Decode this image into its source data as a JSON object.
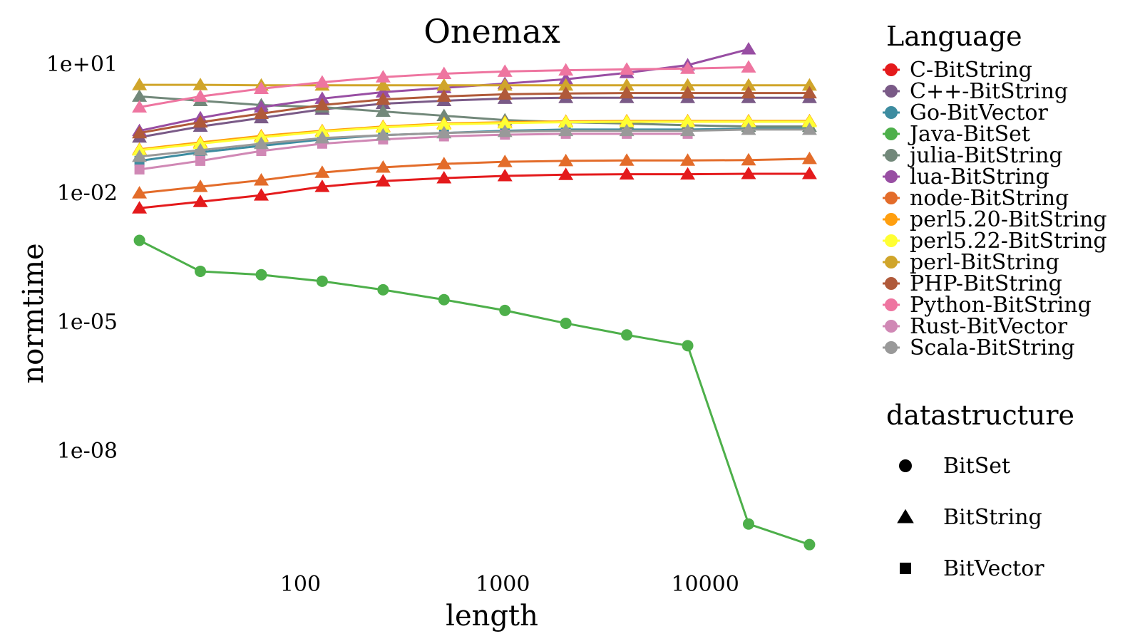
{
  "chart_data": {
    "type": "line",
    "title": "Onemax",
    "xlabel": "length",
    "ylabel": "normtime",
    "x_scale": "log",
    "y_scale": "log",
    "xlim": [
      13,
      40000
    ],
    "ylim_log10": [
      -10.6,
      1.5
    ],
    "x_ticks": [
      {
        "value": 100,
        "label": "100"
      },
      {
        "value": 1000,
        "label": "1000"
      },
      {
        "value": 10000,
        "label": "10000"
      }
    ],
    "y_ticks": [
      {
        "log10": 1,
        "label": "1e+01"
      },
      {
        "log10": -2,
        "label": "1e-02"
      },
      {
        "log10": -5,
        "label": "1e-05"
      },
      {
        "log10": -8,
        "label": "1e-08"
      }
    ],
    "grid": false,
    "legend_position": "right",
    "x": [
      16,
      32,
      64,
      128,
      256,
      512,
      1024,
      2048,
      4096,
      8192,
      16384,
      32768
    ],
    "series": [
      {
        "name": "C-BitString",
        "color": "#E41A1C",
        "shape": "triangle",
        "log10_values": [
          -2.35,
          -2.2,
          -2.05,
          -1.85,
          -1.72,
          -1.65,
          -1.6,
          -1.57,
          -1.56,
          -1.56,
          -1.55,
          -1.55
        ]
      },
      {
        "name": "C++-BitString",
        "color": "#7A5A87",
        "shape": "triangle",
        "log10_values": [
          -0.7,
          -0.45,
          -0.25,
          -0.05,
          0.08,
          0.15,
          0.2,
          0.22,
          0.22,
          0.22,
          0.22,
          0.22
        ]
      },
      {
        "name": "Go-BitVector",
        "color": "#3D8CA0",
        "shape": "square",
        "log10_values": [
          -1.25,
          -1.05,
          -0.9,
          -0.75,
          -0.65,
          -0.6,
          -0.55,
          -0.52,
          -0.52,
          -0.52,
          -0.5,
          -0.5
        ]
      },
      {
        "name": "Java-BitSet",
        "color": "#4DAF4A",
        "shape": "circle",
        "log10_values": [
          -3.1,
          -3.82,
          -3.9,
          -4.05,
          -4.25,
          -4.48,
          -4.73,
          -5.03,
          -5.3,
          -5.55,
          -9.7,
          -10.18
        ]
      },
      {
        "name": "julia-BitString",
        "color": "#72887A",
        "shape": "triangle",
        "log10_values": [
          0.25,
          0.15,
          0.05,
          0.0,
          -0.1,
          -0.2,
          -0.3,
          -0.35,
          -0.38,
          -0.42,
          -0.45,
          -0.45
        ]
      },
      {
        "name": "lua-BitString",
        "color": "#984EA3",
        "shape": "triangle",
        "log10_values": [
          -0.55,
          -0.25,
          0.0,
          0.2,
          0.35,
          0.45,
          0.55,
          0.65,
          0.8,
          0.98,
          1.35
        ]
      },
      {
        "name": "node-BitString",
        "color": "#E36C2A",
        "shape": "triangle",
        "log10_values": [
          -2.0,
          -1.85,
          -1.7,
          -1.52,
          -1.4,
          -1.32,
          -1.27,
          -1.25,
          -1.24,
          -1.24,
          -1.23,
          -1.2
        ]
      },
      {
        "name": "perl5.20-BitString",
        "color": "#FF9F0F",
        "shape": "triangle",
        "log10_values": [
          -0.98,
          -0.82,
          -0.67,
          -0.55,
          -0.45,
          -0.38,
          -0.35,
          -0.33,
          -0.32,
          -0.32,
          -0.32,
          -0.32
        ]
      },
      {
        "name": "perl5.22-BitString",
        "color": "#FFFF33",
        "shape": "triangle",
        "log10_values": [
          -1.0,
          -0.85,
          -0.7,
          -0.57,
          -0.47,
          -0.4,
          -0.37,
          -0.35,
          -0.34,
          -0.34,
          -0.34,
          -0.34
        ]
      },
      {
        "name": "perl-BitString",
        "color": "#D0A52A",
        "shape": "triangle",
        "log10_values": [
          0.52,
          0.52,
          0.51,
          0.51,
          0.51,
          0.51,
          0.51,
          0.51,
          0.51,
          0.51,
          0.51,
          0.51
        ]
      },
      {
        "name": "PHP-BitString",
        "color": "#B05A3A",
        "shape": "triangle",
        "log10_values": [
          -0.6,
          -0.35,
          -0.15,
          0.05,
          0.18,
          0.25,
          0.3,
          0.32,
          0.33,
          0.33,
          0.33,
          0.33
        ]
      },
      {
        "name": "Python-BitString",
        "color": "#EE75A0",
        "shape": "triangle",
        "log10_values": [
          0.0,
          0.25,
          0.43,
          0.58,
          0.7,
          0.78,
          0.83,
          0.86,
          0.88,
          0.9,
          0.93
        ]
      },
      {
        "name": "Rust-BitVector",
        "color": "#D088B5",
        "shape": "square",
        "log10_values": [
          -1.45,
          -1.25,
          -1.02,
          -0.85,
          -0.75,
          -0.68,
          -0.64,
          -0.62,
          -0.62,
          -0.62
        ]
      },
      {
        "name": "Scala-BitString",
        "color": "#999999",
        "shape": "triangle",
        "log10_values": [
          -1.15,
          -1.0,
          -0.85,
          -0.72,
          -0.65,
          -0.6,
          -0.57,
          -0.55,
          -0.55,
          -0.55,
          -0.52,
          -0.52
        ]
      }
    ]
  },
  "legend": {
    "language_title": "Language",
    "datastructure_title": "datastructure",
    "shapes": [
      {
        "shape": "circle",
        "label": "BitSet"
      },
      {
        "shape": "triangle",
        "label": "BitString"
      },
      {
        "shape": "square",
        "label": "BitVector"
      }
    ]
  }
}
